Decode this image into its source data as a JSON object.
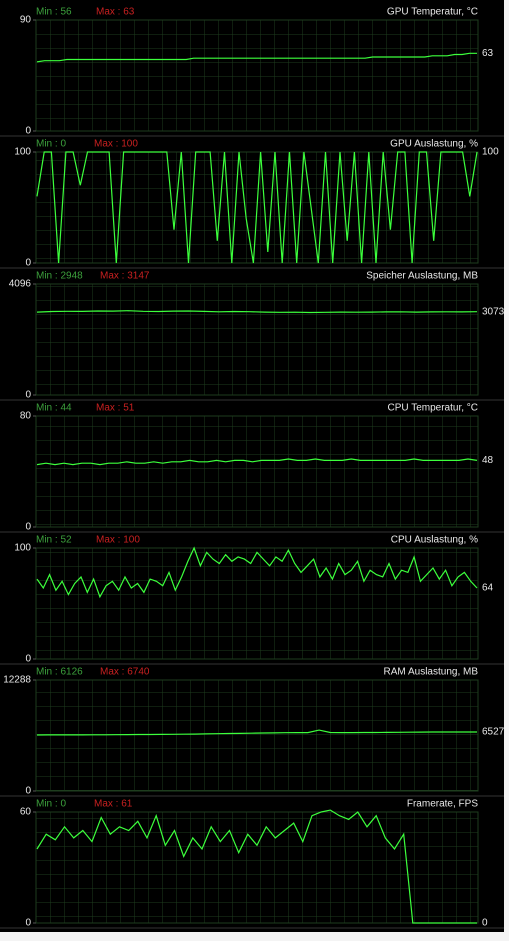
{
  "chart_data": [
    {
      "type": "line",
      "title": "GPU Temperatur, °C",
      "min_text": "Min : 56",
      "max_text": "Max : 63",
      "current": 63,
      "ylim": [
        0,
        90
      ],
      "yticks": [
        0,
        90
      ],
      "color": "#3cff3c",
      "values": [
        56,
        57,
        57,
        57,
        58,
        58,
        58,
        58,
        58,
        58,
        58,
        58,
        58,
        58,
        58,
        58,
        58,
        58,
        58,
        58,
        58,
        59,
        59,
        59,
        59,
        59,
        59,
        59,
        59,
        59,
        59,
        59,
        59,
        59,
        59,
        59,
        59,
        59,
        59,
        59,
        59,
        59,
        59,
        59,
        59,
        60,
        60,
        60,
        60,
        60,
        60,
        60,
        60,
        61,
        61,
        61,
        62,
        62,
        63,
        63
      ]
    },
    {
      "type": "line",
      "title": "GPU Auslastung, %",
      "min_text": "Min : 0",
      "max_text": "Max : 100",
      "current": 100,
      "ylim": [
        0,
        100
      ],
      "yticks": [
        0,
        100
      ],
      "color": "#3cff3c",
      "values": [
        60,
        100,
        100,
        0,
        100,
        100,
        70,
        100,
        100,
        100,
        100,
        0,
        100,
        100,
        100,
        100,
        100,
        100,
        100,
        30,
        100,
        0,
        100,
        100,
        100,
        20,
        100,
        0,
        100,
        40,
        0,
        100,
        10,
        100,
        0,
        100,
        0,
        100,
        50,
        0,
        100,
        0,
        100,
        20,
        100,
        0,
        100,
        0,
        100,
        30,
        100,
        100,
        0,
        100,
        100,
        20,
        100,
        100,
        100,
        100,
        60,
        100
      ]
    },
    {
      "type": "line",
      "title": "Speicher Auslastung, MB",
      "min_text": "Min : 2948",
      "max_text": "Max : 3147",
      "current": 3073,
      "ylim": [
        0,
        4096
      ],
      "yticks": [
        0,
        4096
      ],
      "color": "#3cff3c",
      "values": [
        3060,
        3080,
        3090,
        3085,
        3100,
        3095,
        3110,
        3090,
        3080,
        3095,
        3100,
        3085,
        3070,
        3080,
        3075,
        3060,
        3050,
        3055,
        3045,
        3050,
        3060,
        3055,
        3060,
        3065,
        3070,
        3060,
        3065,
        3070,
        3068,
        3073
      ]
    },
    {
      "type": "line",
      "title": "CPU Temperatur, °C",
      "min_text": "Min : 44",
      "max_text": "Max : 51",
      "current": 48,
      "ylim": [
        0,
        80
      ],
      "yticks": [
        0,
        80
      ],
      "color": "#3cff3c",
      "values": [
        45,
        46,
        45,
        46,
        45,
        46,
        46,
        45,
        46,
        46,
        47,
        46,
        46,
        47,
        46,
        47,
        47,
        48,
        47,
        47,
        48,
        47,
        48,
        48,
        47,
        48,
        48,
        48,
        49,
        48,
        48,
        49,
        48,
        48,
        48,
        49,
        48,
        48,
        48,
        48,
        48,
        48,
        49,
        48,
        48,
        48,
        48,
        48,
        49,
        48
      ]
    },
    {
      "type": "line",
      "title": "CPU Auslastung, %",
      "min_text": "Min : 52",
      "max_text": "Max : 100",
      "current": 64,
      "ylim": [
        0,
        100
      ],
      "yticks": [
        0,
        100
      ],
      "color": "#3cff3c",
      "values": [
        72,
        64,
        76,
        62,
        70,
        58,
        68,
        74,
        60,
        72,
        56,
        66,
        70,
        62,
        74,
        64,
        68,
        60,
        72,
        70,
        66,
        78,
        62,
        74,
        88,
        100,
        84,
        96,
        90,
        86,
        94,
        88,
        92,
        90,
        86,
        96,
        90,
        84,
        92,
        88,
        98,
        86,
        78,
        84,
        90,
        74,
        82,
        72,
        86,
        76,
        80,
        88,
        70,
        80,
        76,
        74,
        86,
        72,
        80,
        78,
        92,
        70,
        76,
        82,
        72,
        80,
        66,
        74,
        78,
        70,
        64
      ]
    },
    {
      "type": "line",
      "title": "RAM Auslastung, MB",
      "min_text": "Min : 6126",
      "max_text": "Max : 6740",
      "current": 6527,
      "ylim": [
        0,
        12288
      ],
      "yticks": [
        0,
        12288
      ],
      "color": "#3cff3c",
      "values": [
        6200,
        6210,
        6205,
        6215,
        6210,
        6220,
        6225,
        6230,
        6240,
        6250,
        6260,
        6270,
        6280,
        6290,
        6300,
        6320,
        6340,
        6360,
        6380,
        6400,
        6420,
        6430,
        6450,
        6460,
        6470,
        6740,
        6480,
        6470,
        6470,
        6480,
        6480,
        6490,
        6500,
        6510,
        6520,
        6527,
        6527,
        6527,
        6527,
        6527
      ]
    },
    {
      "type": "line",
      "title": "Framerate, FPS",
      "min_text": "Min : 0",
      "max_text": "Max : 61",
      "current": 0,
      "ylim": [
        0,
        60
      ],
      "yticks": [
        0,
        60
      ],
      "color": "#3cff3c",
      "values": [
        40,
        48,
        45,
        52,
        46,
        50,
        44,
        57,
        48,
        52,
        50,
        55,
        46,
        58,
        42,
        50,
        36,
        46,
        40,
        52,
        44,
        50,
        38,
        48,
        42,
        52,
        46,
        50,
        54,
        44,
        58,
        60,
        61,
        58,
        56,
        60,
        52,
        58,
        46,
        40,
        48,
        0,
        0,
        0,
        0,
        0,
        0,
        0,
        0
      ]
    }
  ]
}
